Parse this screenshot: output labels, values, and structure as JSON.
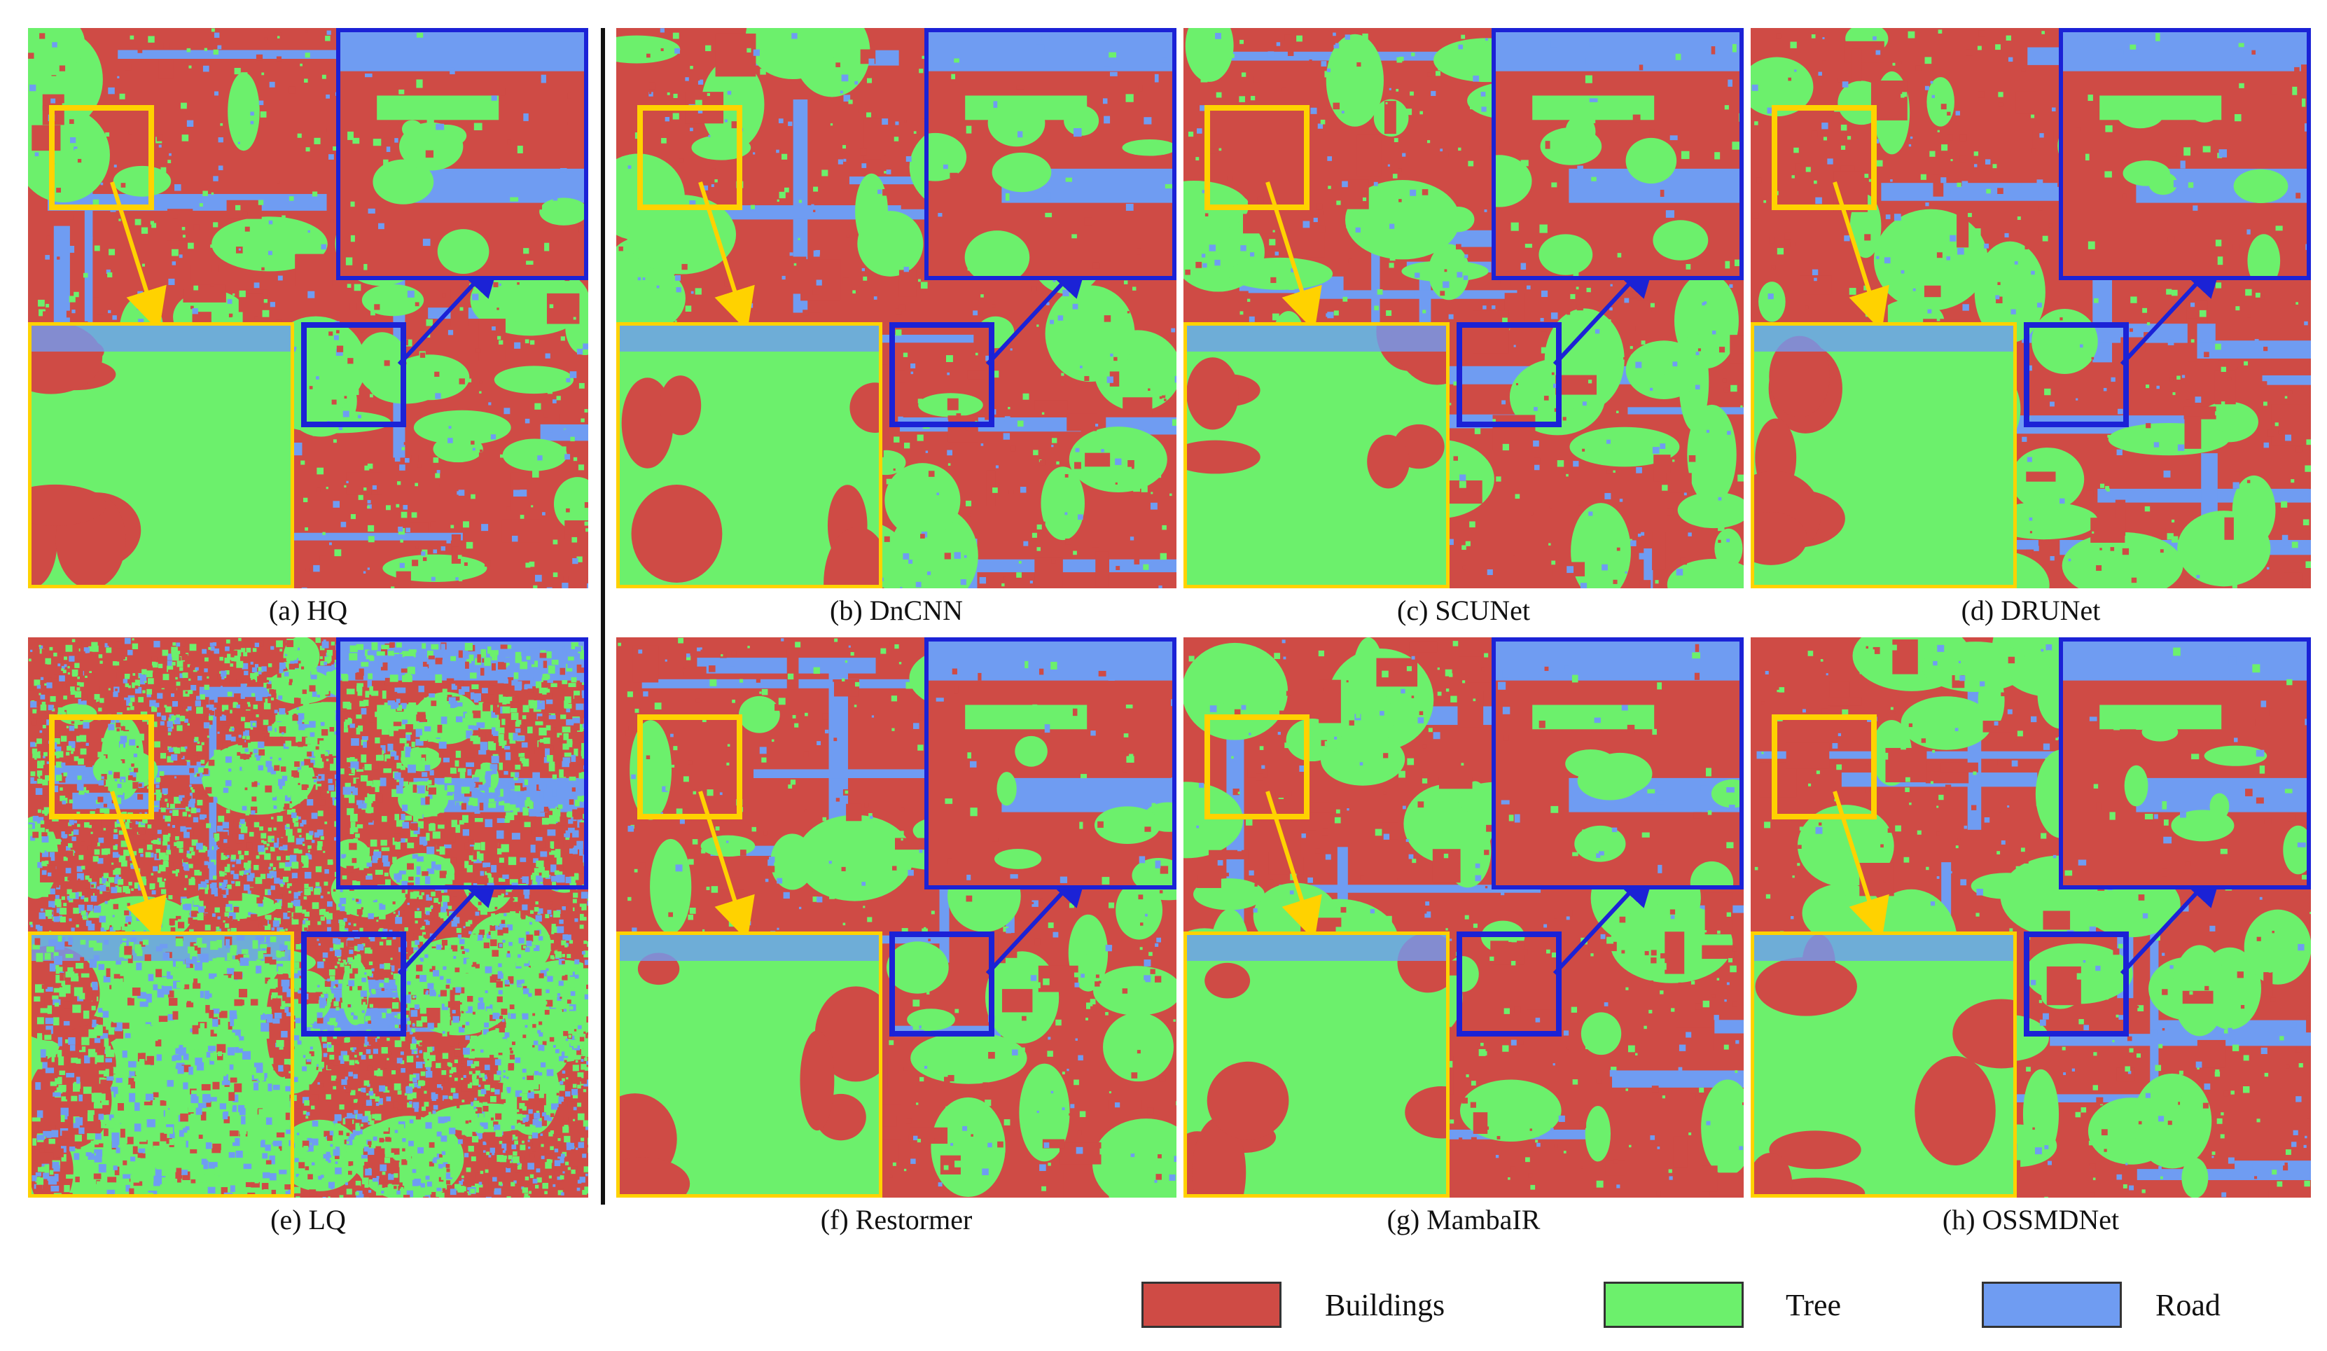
{
  "figure": {
    "panels": [
      {
        "id": "a",
        "caption": "(a) HQ"
      },
      {
        "id": "b",
        "caption": "(b) DnCNN"
      },
      {
        "id": "c",
        "caption": "(c) SCUNet"
      },
      {
        "id": "d",
        "caption": "(d) DRUNet"
      },
      {
        "id": "e",
        "caption": "(e) LQ"
      },
      {
        "id": "f",
        "caption": "(f) Restormer"
      },
      {
        "id": "g",
        "caption": "(g) MambaIR"
      },
      {
        "id": "h",
        "caption": "(h) OSSMDNet"
      }
    ],
    "legend": [
      {
        "label": "Buildings",
        "color": "#cf4b45"
      },
      {
        "label": "Tree",
        "color": "#6cf06c"
      },
      {
        "label": "Road",
        "color": "#6f9cf2"
      }
    ],
    "colors": {
      "buildings": "#cf4b45",
      "tree": "#6cf06c",
      "road": "#6f9cf2",
      "zoom_yellow": "#ffd200",
      "zoom_blue": "#1b22d6"
    }
  }
}
